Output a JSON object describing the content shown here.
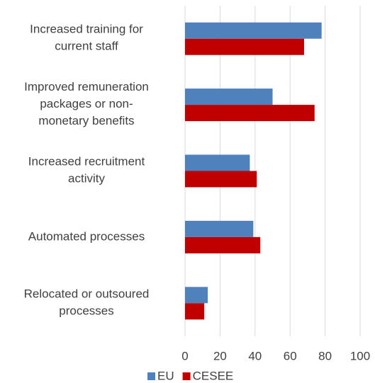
{
  "chart_data": {
    "type": "barh",
    "categories": [
      "Increased training for\ncurrent staff",
      "Improved remuneration\npackages or non-\nmonetary benefits",
      "Increased recruitment\nactivity",
      "Automated processes",
      "Relocated or outsoured\nprocesses"
    ],
    "series": [
      {
        "name": "EU",
        "color": "#4f81bd",
        "values": [
          78,
          50,
          37,
          39,
          13
        ]
      },
      {
        "name": "CESEE",
        "color": "#c00000",
        "values": [
          68,
          74,
          41,
          43,
          11
        ]
      }
    ],
    "xlim": [
      0,
      100
    ],
    "xticks": [
      0,
      20,
      40,
      60,
      80,
      100
    ],
    "grid": true,
    "legend": "bottom"
  }
}
